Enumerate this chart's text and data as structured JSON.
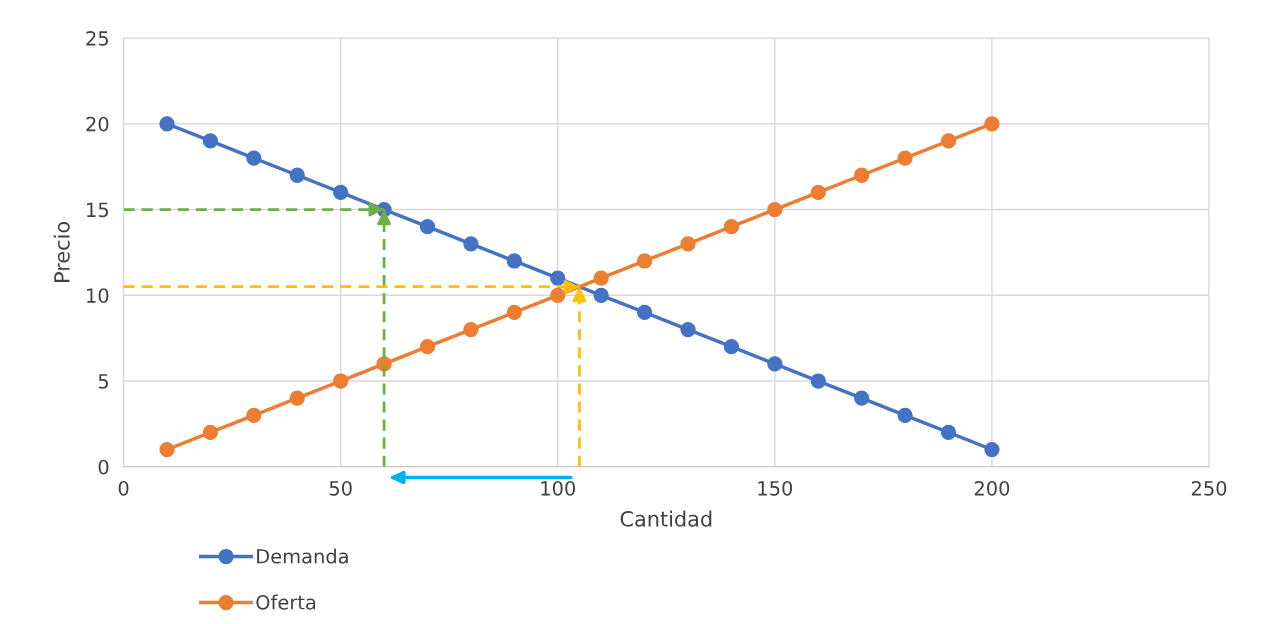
{
  "chart_data": {
    "type": "line",
    "xlabel": "Cantidad",
    "ylabel": "Precio",
    "xlim": [
      0,
      250
    ],
    "xticks": [
      0,
      50,
      100,
      150,
      200,
      250
    ],
    "ylim": [
      0,
      25
    ],
    "yticks": [
      0,
      5,
      10,
      15,
      20,
      25
    ],
    "grid": true,
    "legend": "bottom left",
    "marker": "circle",
    "line_style": "solid",
    "series": [
      {
        "name": "Demanda",
        "color": "#4472c4",
        "x": [
          10,
          20,
          30,
          40,
          50,
          60,
          70,
          80,
          90,
          100,
          110,
          120,
          130,
          140,
          150,
          160,
          170,
          180,
          190,
          200
        ],
        "values": [
          20,
          19,
          18,
          17,
          16,
          15,
          14,
          13,
          12,
          11,
          10,
          9,
          8,
          7,
          6,
          5,
          4,
          3,
          2,
          1
        ]
      },
      {
        "name": "Oferta",
        "color": "#ed7d31",
        "x": [
          10,
          20,
          30,
          40,
          50,
          60,
          70,
          80,
          90,
          100,
          110,
          120,
          130,
          140,
          150,
          160,
          170,
          180,
          190,
          200
        ],
        "values": [
          1,
          2,
          3,
          4,
          5,
          6,
          7,
          8,
          9,
          10,
          11,
          12,
          13,
          14,
          15,
          16,
          17,
          18,
          19,
          20
        ]
      },
      {
        "color": "#70ad47",
        "x": [
          0,
          60
        ],
        "values": [
          15,
          15
        ],
        "line_style": "dashed",
        "marker": "none"
      },
      {
        "color": "#70ad47",
        "x": [
          60,
          60
        ],
        "values": [
          0,
          15
        ],
        "line_style": "dashed",
        "marker": "none"
      },
      {
        "color": "#ffc000",
        "x": [
          0,
          105
        ],
        "values": [
          10.5,
          10.5
        ],
        "line_style": "dashed",
        "marker": "none"
      },
      {
        "color": "#ffc000",
        "x": [
          105,
          105
        ],
        "values": [
          0,
          10.5
        ],
        "line_style": "dashed",
        "marker": "none"
      }
    ]
  }
}
